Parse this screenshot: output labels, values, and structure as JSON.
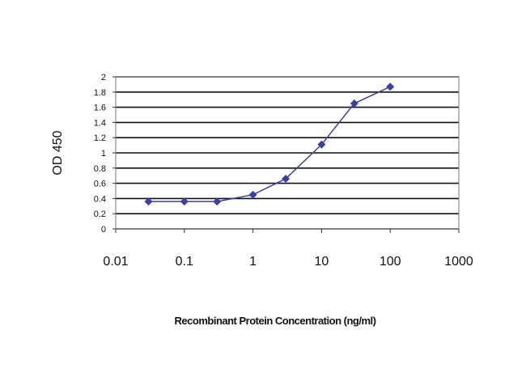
{
  "chart_data": {
    "type": "line",
    "title": "",
    "xlabel": "Recombinant Protein Concentration (ng/ml)",
    "ylabel": "OD 450",
    "xscale": "log",
    "xlim": [
      0.01,
      1000
    ],
    "ylim": [
      0,
      2
    ],
    "x_ticks": [
      "0.01",
      "0.1",
      "1",
      "10",
      "100",
      "1000"
    ],
    "y_ticks": [
      "0",
      "0.2",
      "0.4",
      "0.6",
      "0.8",
      "1",
      "1.2",
      "1.4",
      "1.6",
      "1.8",
      "2"
    ],
    "grid": "horizontal",
    "legend": "none",
    "series": [
      {
        "x": [
          0.03,
          0.1,
          0.3,
          1,
          3,
          10,
          30,
          100
        ],
        "y": [
          0.36,
          0.36,
          0.36,
          0.45,
          0.66,
          1.11,
          1.65,
          1.87
        ],
        "color": "#3a40a8",
        "marker": "diamond"
      }
    ]
  }
}
